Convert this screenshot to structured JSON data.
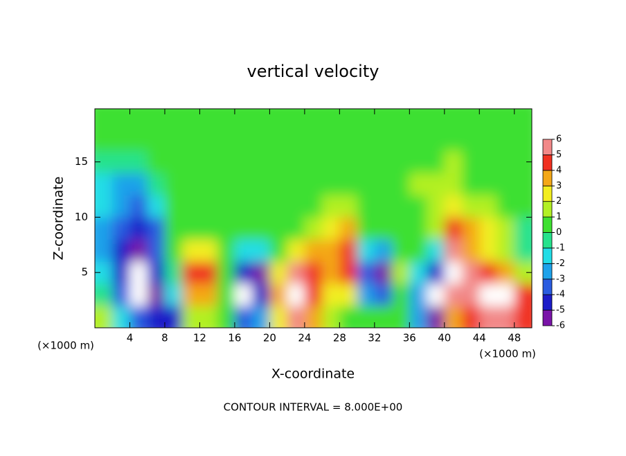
{
  "chart_data": {
    "type": "heatmap",
    "title": "vertical velocity",
    "x_label": "X-coordinate",
    "y_label": "Z-coordinate",
    "x_unit_label": "(×1000 m)",
    "x_unit_label_right": "(×1000 m)",
    "annotation": "CONTOUR INTERVAL = 8.000E+00",
    "xlim": [
      0,
      50
    ],
    "ylim": [
      0,
      19.8
    ],
    "xticks": [
      4,
      8,
      12,
      16,
      20,
      24,
      28,
      32,
      36,
      40,
      44,
      48
    ],
    "yticks": [
      5,
      10,
      15
    ],
    "x": [
      1,
      3,
      5,
      7,
      9,
      11,
      13,
      15,
      17,
      19,
      21,
      23,
      25,
      27,
      29,
      31,
      33,
      35,
      37,
      39,
      41,
      43,
      45,
      47,
      49
    ],
    "y": [
      1,
      3,
      5,
      7,
      9,
      11,
      13,
      15,
      17,
      19
    ],
    "z": [
      [
        1,
        -2,
        -4,
        -5,
        -5,
        1,
        1,
        0,
        -4,
        -3,
        2,
        6,
        3,
        1,
        0,
        0,
        0,
        0,
        -3,
        -6,
        3,
        4,
        6,
        6,
        4
      ],
      [
        -1,
        -4,
        -7,
        -6,
        -2,
        3,
        3,
        0,
        -7,
        -5,
        3,
        7,
        4,
        2,
        2,
        -3,
        -4,
        0,
        -3,
        -7,
        5,
        5,
        7,
        7,
        4
      ],
      [
        -2,
        -5,
        -7,
        -5,
        -1,
        4,
        4,
        0,
        -5,
        -6,
        2,
        6,
        4,
        3,
        4,
        -4,
        -6,
        1,
        -2,
        -5,
        7,
        5,
        4,
        3,
        1
      ],
      [
        -3,
        -5,
        -6,
        -4,
        0,
        2,
        2,
        0,
        -2,
        -2,
        0,
        2,
        3,
        3,
        4,
        -2,
        -3,
        0,
        0,
        -2,
        6,
        3,
        2,
        1,
        -1
      ],
      [
        -3,
        -4,
        -5,
        -4,
        0,
        0,
        0,
        0,
        0,
        0,
        0,
        0,
        1,
        2,
        3,
        0,
        0,
        0,
        0,
        1,
        4,
        3,
        2,
        1,
        -1
      ],
      [
        -2,
        -3,
        -4,
        -2,
        0,
        0,
        0,
        0,
        0,
        0,
        0,
        0,
        0,
        1,
        1,
        0,
        0,
        0,
        0,
        1,
        2,
        1,
        1,
        0,
        0
      ],
      [
        -2,
        -3,
        -3,
        -1,
        0,
        0,
        0,
        0,
        0,
        0,
        0,
        0,
        0,
        0,
        0,
        0,
        0,
        0,
        1,
        1,
        1,
        0,
        0,
        0,
        0
      ],
      [
        -1,
        -1,
        -1,
        0,
        0,
        0,
        0,
        0,
        0,
        0,
        0,
        0,
        0,
        0,
        0,
        0,
        0,
        0,
        0,
        0,
        1,
        0,
        0,
        0,
        0
      ],
      [
        0,
        0,
        0,
        0,
        0,
        0,
        0,
        0,
        0,
        0,
        0,
        0,
        0,
        0,
        0,
        0,
        0,
        0,
        0,
        0,
        0,
        0,
        0,
        0,
        0
      ],
      [
        0,
        0,
        0,
        0,
        0,
        0,
        0,
        0,
        0,
        0,
        0,
        0,
        0,
        0,
        0,
        0,
        0,
        0,
        0,
        0,
        0,
        0,
        0,
        0,
        0
      ]
    ],
    "colorbar": {
      "levels": [
        -6,
        -5,
        -4,
        -3,
        -2,
        -1,
        0,
        1,
        2,
        3,
        4,
        5,
        6
      ],
      "colors": [
        "#7a14a8",
        "#1c1cc8",
        "#2a5ce0",
        "#1ea2ea",
        "#22dde6",
        "#26e28c",
        "#3ee030",
        "#b2f024",
        "#f2ee20",
        "#f4a818",
        "#f03020",
        "#f28888"
      ],
      "over_color": "#ffffff",
      "under_color": "#ffffff"
    }
  }
}
